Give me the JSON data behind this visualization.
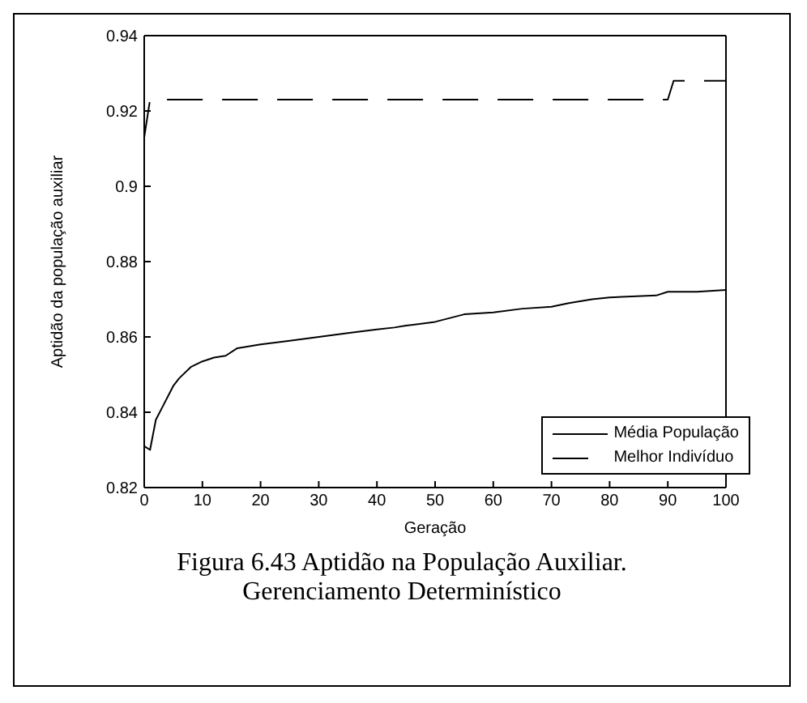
{
  "chart_data": {
    "type": "line",
    "xlabel": "Geração",
    "ylabel": "Aptidão da população auxiliar",
    "xlim": [
      0,
      100
    ],
    "xticks": [
      0,
      10,
      20,
      30,
      40,
      50,
      60,
      70,
      80,
      90,
      100
    ],
    "ylim": [
      0.82,
      0.94
    ],
    "yticks": [
      0.82,
      0.84,
      0.86,
      0.88,
      0.9,
      0.92,
      0.94
    ],
    "legend": "bottom right",
    "annotations": [
      "Figura 6.43 Aptidão na População Auxiliar. Gerenciamento Determinístico"
    ],
    "series": [
      {
        "name": "Média População",
        "color": "#000000",
        "line_style": "solid",
        "x": [
          0,
          1,
          2,
          3,
          5,
          6,
          8,
          10,
          12,
          14,
          16,
          20,
          25,
          30,
          35,
          40,
          43,
          45,
          50,
          55,
          60,
          65,
          70,
          73,
          77,
          80,
          88,
          90,
          95,
          100
        ],
        "values": [
          0.831,
          0.83,
          0.838,
          0.841,
          0.847,
          0.849,
          0.852,
          0.8535,
          0.8545,
          0.855,
          0.857,
          0.858,
          0.859,
          0.86,
          0.861,
          0.862,
          0.8625,
          0.863,
          0.864,
          0.866,
          0.8665,
          0.8675,
          0.868,
          0.869,
          0.87,
          0.8705,
          0.871,
          0.872,
          0.872,
          0.8725
        ]
      },
      {
        "name": "Melhor Indivíduo",
        "color": "#000000",
        "line_style": "dashed",
        "x": [
          0,
          1,
          90,
          91,
          100
        ],
        "values": [
          0.913,
          0.923,
          0.923,
          0.928,
          0.928
        ]
      }
    ]
  }
}
